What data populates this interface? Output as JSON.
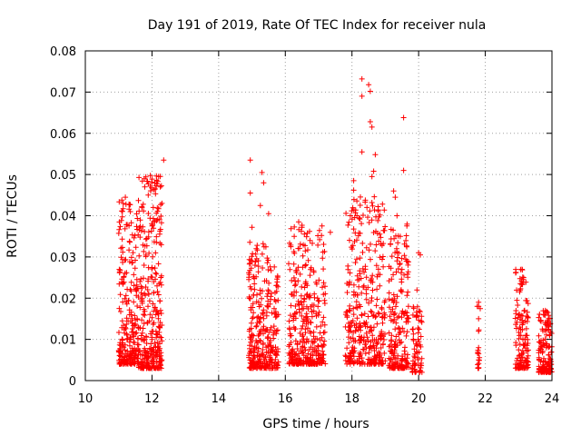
{
  "chart_data": {
    "type": "scatter",
    "title": "Day 191 of 2019, Rate Of TEC Index for receiver nula",
    "xlabel": "GPS time / hours",
    "ylabel": "ROTI / TECUs",
    "xlim": [
      10,
      24
    ],
    "ylim": [
      0,
      0.08
    ],
    "xticks": [
      10,
      12,
      14,
      16,
      18,
      20,
      22,
      24
    ],
    "yticks": [
      0,
      0.01,
      0.02,
      0.03,
      0.04,
      0.05,
      0.06,
      0.07,
      0.08
    ],
    "ytick_labels": [
      "0",
      "0.01",
      "0.02",
      "0.03",
      "0.04",
      "0.05",
      "0.06",
      "0.07",
      "0.08"
    ],
    "grid": true,
    "marker": "+",
    "color": "#ff0000",
    "point_clusters": [
      {
        "x_range": [
          11.0,
          11.6
        ],
        "y_range": [
          0.004,
          0.044
        ],
        "count": 260
      },
      {
        "x_range": [
          11.6,
          12.3
        ],
        "y_range": [
          0.003,
          0.05
        ],
        "count": 320
      },
      {
        "x_range": [
          14.9,
          15.5
        ],
        "y_range": [
          0.003,
          0.034
        ],
        "count": 230
      },
      {
        "x_range": [
          15.5,
          15.8
        ],
        "y_range": [
          0.003,
          0.028
        ],
        "count": 90
      },
      {
        "x_range": [
          16.1,
          17.2
        ],
        "y_range": [
          0.004,
          0.038
        ],
        "count": 340
      },
      {
        "x_range": [
          17.8,
          19.0
        ],
        "y_range": [
          0.004,
          0.045
        ],
        "count": 360
      },
      {
        "x_range": [
          19.1,
          19.7
        ],
        "y_range": [
          0.003,
          0.038
        ],
        "count": 200
      },
      {
        "x_range": [
          19.8,
          20.1
        ],
        "y_range": [
          0.002,
          0.018
        ],
        "count": 70
      },
      {
        "x_range": [
          21.75,
          21.85
        ],
        "y_range": [
          0.003,
          0.019
        ],
        "count": 14
      },
      {
        "x_range": [
          22.9,
          23.3
        ],
        "y_range": [
          0.003,
          0.027
        ],
        "count": 130
      },
      {
        "x_range": [
          23.6,
          24.0
        ],
        "y_range": [
          0.002,
          0.017
        ],
        "count": 150
      }
    ],
    "points": [
      [
        12.35,
        0.0535
      ],
      [
        12.2,
        0.0495
      ],
      [
        12.25,
        0.047
      ],
      [
        12.1,
        0.0465
      ],
      [
        11.2,
        0.0445
      ],
      [
        11.35,
        0.041
      ],
      [
        11.7,
        0.042
      ],
      [
        12.3,
        0.043
      ],
      [
        14.95,
        0.0535
      ],
      [
        14.95,
        0.0455
      ],
      [
        15.0,
        0.0372
      ],
      [
        15.3,
        0.0505
      ],
      [
        15.35,
        0.048
      ],
      [
        15.25,
        0.0425
      ],
      [
        15.5,
        0.0405
      ],
      [
        16.4,
        0.0385
      ],
      [
        16.5,
        0.0372
      ],
      [
        17.1,
        0.0375
      ],
      [
        17.35,
        0.036
      ],
      [
        18.3,
        0.0732
      ],
      [
        18.3,
        0.069
      ],
      [
        18.5,
        0.0718
      ],
      [
        18.55,
        0.0702
      ],
      [
        18.55,
        0.0628
      ],
      [
        18.6,
        0.0615
      ],
      [
        18.3,
        0.0555
      ],
      [
        18.7,
        0.0548
      ],
      [
        18.65,
        0.0508
      ],
      [
        18.6,
        0.0495
      ],
      [
        18.05,
        0.0485
      ],
      [
        18.05,
        0.0462
      ],
      [
        18.6,
        0.0432
      ],
      [
        18.45,
        0.042
      ],
      [
        17.95,
        0.04
      ],
      [
        18.15,
        0.04
      ],
      [
        19.55,
        0.0638
      ],
      [
        19.55,
        0.051
      ],
      [
        19.25,
        0.046
      ],
      [
        19.3,
        0.0445
      ],
      [
        19.35,
        0.04
      ],
      [
        19.45,
        0.035
      ],
      [
        20.0,
        0.031
      ],
      [
        20.05,
        0.0305
      ],
      [
        19.95,
        0.022
      ],
      [
        21.8,
        0.019
      ],
      [
        21.8,
        0.018
      ],
      [
        21.8,
        0.015
      ],
      [
        21.8,
        0.012
      ],
      [
        21.8,
        0.008
      ],
      [
        21.8,
        0.0065
      ],
      [
        21.8,
        0.005
      ],
      [
        21.8,
        0.003
      ],
      [
        23.1,
        0.027
      ],
      [
        23.15,
        0.025
      ],
      [
        23.05,
        0.022
      ],
      [
        23.8,
        0.017
      ],
      [
        23.75,
        0.016
      ],
      [
        23.9,
        0.015
      ]
    ]
  }
}
